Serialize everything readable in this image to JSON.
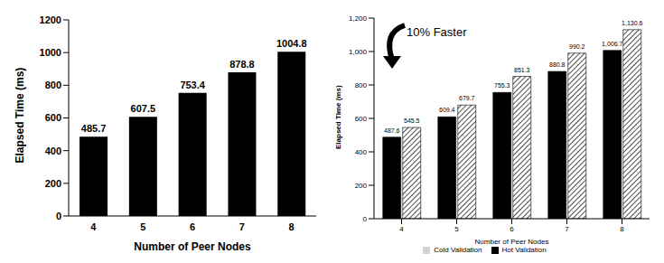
{
  "chart_data": [
    {
      "type": "bar",
      "categories": [
        "4",
        "5",
        "6",
        "7",
        "8"
      ],
      "values": [
        485.7,
        607.5,
        753.4,
        878.8,
        1004.8
      ],
      "color": "#000000",
      "ylim": [
        0,
        1200
      ],
      "yticks": [
        0,
        200,
        400,
        600,
        800,
        1000,
        1200
      ],
      "x_label": "Number of Peer Nodes",
      "y_label": "Elapsed Time (ms)",
      "data_labels": true
    },
    {
      "type": "bar",
      "categories": [
        "4",
        "5",
        "6",
        "7",
        "8"
      ],
      "series": [
        {
          "name": "Hot Validation",
          "color": "#000000",
          "values": [
            487.6,
            609.4,
            755.3,
            880.8,
            1006.7
          ],
          "value_labels": [
            "487.6",
            "609.4",
            "755.3",
            "880.8",
            "1,006.7"
          ]
        },
        {
          "name": "Cold Validation",
          "color": "#ffffff",
          "values": [
            545.5,
            679.7,
            851.3,
            990.2,
            1130.6
          ],
          "value_labels": [
            "545.5",
            "679.7",
            "851.3",
            "990.2",
            "1,130.6"
          ]
        }
      ],
      "ylim": [
        0,
        1200
      ],
      "yticks": [
        0,
        200,
        400,
        600,
        800,
        {
          "value": 1000,
          "label": "1,000"
        },
        {
          "value": 1200,
          "label": "1,200"
        }
      ],
      "x_label": "Number of Peer Nodes",
      "y_label": "Elapsed Time (ms)",
      "data_labels": true,
      "legend": "bottom",
      "annotations": [
        "10% Faster"
      ]
    }
  ]
}
